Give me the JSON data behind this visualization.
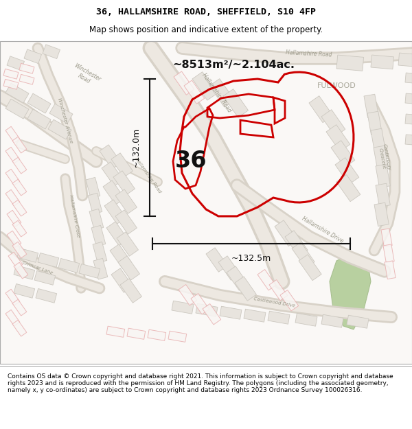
{
  "title_line1": "36, HALLAMSHIRE ROAD, SHEFFIELD, S10 4FP",
  "title_line2": "Map shows position and indicative extent of the property.",
  "area_label": "~8513m²/~2.104ac.",
  "height_label": "~132.0m",
  "width_label": "~132.5m",
  "number_label": "36",
  "place_label": "FULWOOD",
  "footer_text": "Contains OS data © Crown copyright and database right 2021. This information is subject to Crown copyright and database rights 2023 and is reproduced with the permission of HM Land Registry. The polygons (including the associated geometry, namely x, y co-ordinates) are subject to Crown copyright and database rights 2023 Ordnance Survey 100026316.",
  "bg_color": "#f9f7f5",
  "road_fill": "#ede8e1",
  "road_edge": "#d8d0c8",
  "bld_fill": "#e0dbd4",
  "bld_edge": "#c8c4bc",
  "red_bld_fill": "#f5f0ee",
  "red_bld_edge": "#e8a8a8",
  "prop_color": "#cc0000",
  "green_color": "#b8d0a0",
  "text_gray": "#888880",
  "dim_color": "#111111"
}
